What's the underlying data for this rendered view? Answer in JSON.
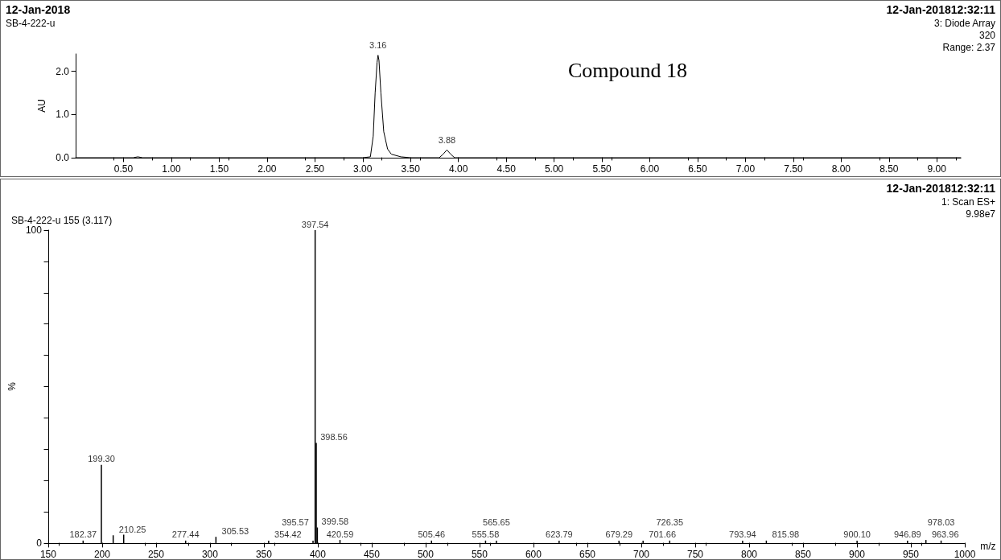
{
  "chart_data": [
    {
      "type": "line",
      "title": "Compound 18",
      "ylabel": "AU",
      "series": [
        {
          "color": "#000000",
          "x": [
            0,
            0.6,
            0.65,
            0.7,
            3.0,
            3.08,
            3.11,
            3.13,
            3.15,
            3.16,
            3.17,
            3.19,
            3.22,
            3.26,
            3.3,
            3.4,
            3.5,
            3.8,
            3.84,
            3.88,
            3.92,
            3.96,
            9.25
          ],
          "values": [
            0,
            0,
            0.02,
            0,
            0,
            0.02,
            0.5,
            1.5,
            2.2,
            2.37,
            2.25,
            1.5,
            0.6,
            0.2,
            0.08,
            0.02,
            0,
            0,
            0.08,
            0.18,
            0.08,
            0,
            0
          ]
        }
      ],
      "xlim": [
        0,
        9.25
      ],
      "xticks": [
        {
          "value": 0.5,
          "label": "0.50"
        },
        {
          "value": 1,
          "label": "1.00"
        },
        {
          "value": 1.5,
          "label": "1.50"
        },
        {
          "value": 2,
          "label": "2.00"
        },
        {
          "value": 2.5,
          "label": "2.50"
        },
        {
          "value": 3,
          "label": "3.00"
        },
        {
          "value": 3.5,
          "label": "3.50"
        },
        {
          "value": 4,
          "label": "4.00"
        },
        {
          "value": 4.5,
          "label": "4.50"
        },
        {
          "value": 5,
          "label": "5.00"
        },
        {
          "value": 5.5,
          "label": "5.50"
        },
        {
          "value": 6,
          "label": "6.00"
        },
        {
          "value": 6.5,
          "label": "6.50"
        },
        {
          "value": 7,
          "label": "7.00"
        },
        {
          "value": 7.5,
          "label": "7.50"
        },
        {
          "value": 8,
          "label": "8.00"
        },
        {
          "value": 8.5,
          "label": "8.50"
        },
        {
          "value": 9,
          "label": "9.00"
        }
      ],
      "ylim": [
        0,
        2.4
      ],
      "yticks": [
        {
          "value": 0,
          "label": "0.0"
        },
        {
          "value": 1,
          "label": "1.0"
        },
        {
          "value": 2,
          "label": "2.0"
        }
      ],
      "annotations": [
        {
          "text": "3.16",
          "x": 3.16,
          "y": 2.37
        },
        {
          "text": "3.88",
          "x": 3.88,
          "y": 0.18
        },
        "12-Jan-2018",
        "SB-4-222-u",
        "12-Jan-201812:32:11",
        "3: Diode Array",
        "320",
        "Range: 2.37"
      ],
      "grid": false,
      "marker": "none",
      "line_style": "solid"
    },
    {
      "type": "bar",
      "title": "SB-4-222-u 155 (3.117)",
      "xlabel": "m/z",
      "ylabel": "%",
      "x": [
        182.37,
        199.3,
        210.25,
        220,
        277.44,
        305.53,
        354.42,
        395.57,
        397.54,
        398.56,
        399.58,
        420.59,
        505.46,
        555.58,
        565.65,
        623.79,
        679.29,
        701.66,
        726.35,
        793.94,
        815.98,
        900.1,
        946.89,
        963.96,
        978.03
      ],
      "values": [
        0.8,
        25,
        2.5,
        2.7,
        0.8,
        2,
        0.8,
        0.8,
        100,
        32,
        5,
        1,
        0.8,
        0.8,
        0.8,
        0.8,
        0.8,
        0.8,
        0.8,
        0.8,
        0.8,
        0.8,
        0.8,
        1,
        0.8
      ],
      "color": "#000000",
      "xlim": [
        150,
        1000
      ],
      "xticks": [
        150,
        200,
        250,
        300,
        350,
        400,
        450,
        500,
        550,
        600,
        650,
        700,
        750,
        800,
        850,
        900,
        950,
        1000
      ],
      "ylim": [
        0,
        100
      ],
      "yticks": [
        0,
        {
          "value": 10,
          "label": null
        },
        {
          "value": 20,
          "label": null
        },
        {
          "value": 30,
          "label": null
        },
        {
          "value": 40,
          "label": null
        },
        {
          "value": 50,
          "label": null
        },
        {
          "value": 60,
          "label": null
        },
        {
          "value": 70,
          "label": null
        },
        {
          "value": 80,
          "label": null
        },
        {
          "value": 90,
          "label": null
        },
        100
      ],
      "annotations": [
        {
          "text": "182.37",
          "x": 182.37,
          "y": 0.8
        },
        {
          "text": "199.30",
          "x": 199.3,
          "y": 25
        },
        {
          "text": "210.25",
          "x": 210.25,
          "y": 2.5
        },
        {
          "text": "277.44",
          "x": 277.44,
          "y": 0.8
        },
        {
          "text": "305.53",
          "x": 305.53,
          "y": 2
        },
        {
          "text": "354.42",
          "x": 354.42,
          "y": 0.8
        },
        {
          "text": "395.57",
          "x": 395.57,
          "y": 0.8
        },
        {
          "text": "397.54",
          "x": 397.54,
          "y": 100
        },
        {
          "text": "398.56",
          "x": 398.56,
          "y": 32
        },
        {
          "text": "399.58",
          "x": 399.58,
          "y": 5
        },
        {
          "text": "420.59",
          "x": 420.59,
          "y": 1
        },
        {
          "text": "505.46",
          "x": 505.46,
          "y": 0.8
        },
        {
          "text": "555.58",
          "x": 555.58,
          "y": 0.8
        },
        {
          "text": "565.65",
          "x": 565.65,
          "y": 0.8
        },
        {
          "text": "623.79",
          "x": 623.79,
          "y": 0.8
        },
        {
          "text": "679.29",
          "x": 679.29,
          "y": 0.8
        },
        {
          "text": "701.66",
          "x": 701.66,
          "y": 0.8
        },
        {
          "text": "726.35",
          "x": 726.35,
          "y": 0.8
        },
        {
          "text": "793.94",
          "x": 793.94,
          "y": 0.8
        },
        {
          "text": "815.98",
          "x": 815.98,
          "y": 0.8
        },
        {
          "text": "900.10",
          "x": 900.1,
          "y": 0.8
        },
        {
          "text": "946.89",
          "x": 946.89,
          "y": 0.8
        },
        {
          "text": "963.96",
          "x": 963.96,
          "y": 1
        },
        {
          "text": "978.03",
          "x": 978.03,
          "y": 0.8
        },
        "12-Jan-201812:32:11",
        "1: Scan ES+",
        "9.98e7"
      ],
      "grid": false
    }
  ]
}
